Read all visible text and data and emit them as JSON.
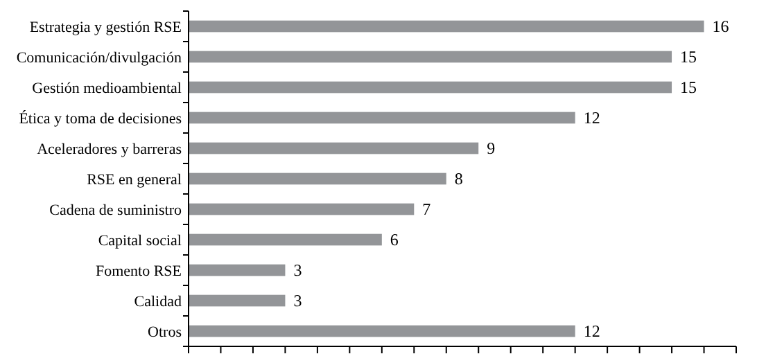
{
  "chart_data": {
    "type": "bar",
    "orientation": "horizontal",
    "categories": [
      "Estrategia y gestión RSE",
      "Comunicación/divulgación",
      "Gestión medioambiental",
      "Ética y toma de decisiones",
      "Aceleradores y barreras",
      "RSE en general",
      "Cadena de suministro",
      "Capital social",
      "Fomento RSE",
      "Calidad",
      "Otros"
    ],
    "values": [
      16,
      15,
      15,
      12,
      9,
      8,
      7,
      6,
      3,
      3,
      12
    ],
    "color": "#939598",
    "data_labels": true,
    "xlim": [
      0,
      17
    ],
    "xticks": [
      {
        "value": 0,
        "label": null
      },
      {
        "value": 1,
        "label": null
      },
      {
        "value": 2,
        "label": null
      },
      {
        "value": 3,
        "label": null
      },
      {
        "value": 4,
        "label": null
      },
      {
        "value": 5,
        "label": null
      },
      {
        "value": 6,
        "label": null
      },
      {
        "value": 7,
        "label": null
      },
      {
        "value": 8,
        "label": null
      },
      {
        "value": 9,
        "label": null
      },
      {
        "value": 10,
        "label": null
      },
      {
        "value": 11,
        "label": null
      },
      {
        "value": 12,
        "label": null
      },
      {
        "value": 13,
        "label": null
      },
      {
        "value": 14,
        "label": null
      },
      {
        "value": 15,
        "label": null
      },
      {
        "value": 16,
        "label": null
      },
      {
        "value": 17,
        "label": null
      }
    ],
    "tick_labels": "y"
  }
}
